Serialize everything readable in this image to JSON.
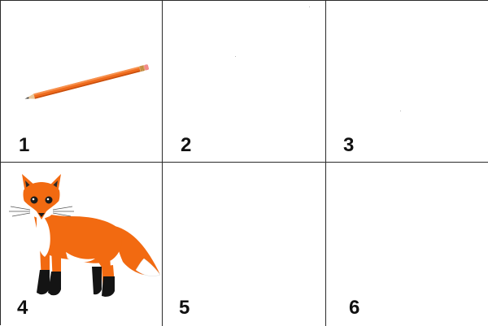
{
  "cells": [
    {
      "number": "1",
      "picture": "pencil-icon"
    },
    {
      "number": "2",
      "picture": ""
    },
    {
      "number": "3",
      "picture": ""
    },
    {
      "number": "4",
      "picture": "fox-icon"
    },
    {
      "number": "5",
      "picture": ""
    },
    {
      "number": "6",
      "picture": ""
    }
  ],
  "colors": {
    "grid_line": "#2a2a2a",
    "fox_orange": "#f26a11",
    "pencil_orange": "#ee6a1c"
  }
}
